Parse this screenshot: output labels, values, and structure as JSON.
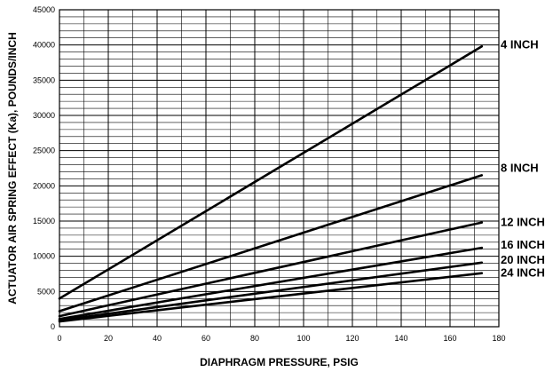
{
  "chart_data": {
    "type": "line",
    "title": "",
    "xlabel": "DIAPHRAGM PRESSURE, PSIG",
    "ylabel": "ACTUATOR AIR SPRING EFFECT (Ka), POUNDS/INCH",
    "xlim": [
      0,
      180
    ],
    "ylim": [
      0,
      45000
    ],
    "x_ticks": [
      "0",
      "20",
      "40",
      "60",
      "80",
      "100",
      "120",
      "140",
      "160",
      "180"
    ],
    "y_ticks": [
      "0",
      "5000",
      "10000",
      "15000",
      "20000",
      "25000",
      "30000",
      "35000",
      "40000",
      "45000"
    ],
    "grid": true,
    "x_grid_step": 10,
    "y_grid_step": 1000,
    "series": [
      {
        "name": "4 INCH",
        "x": [
          0,
          173
        ],
        "y": [
          4000,
          39800
        ]
      },
      {
        "name": "8 INCH",
        "x": [
          0,
          173
        ],
        "y": [
          2200,
          21500
        ]
      },
      {
        "name": "12 INCH",
        "x": [
          0,
          173
        ],
        "y": [
          1500,
          14800
        ]
      },
      {
        "name": "16 INCH",
        "x": [
          0,
          173
        ],
        "y": [
          1100,
          11200
        ]
      },
      {
        "name": "20 INCH",
        "x": [
          0,
          173
        ],
        "y": [
          900,
          9100
        ]
      },
      {
        "name": "24 INCH",
        "x": [
          0,
          173
        ],
        "y": [
          750,
          7600
        ]
      }
    ]
  }
}
